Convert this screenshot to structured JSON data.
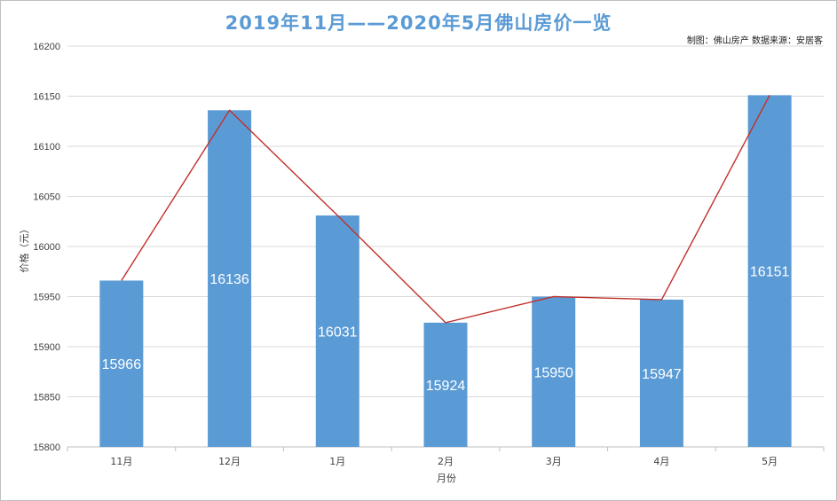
{
  "title": "2019年11月——2020年5月佛山房价一览",
  "source": "制图：佛山房产   数据来源：安居客",
  "colors": {
    "bar": "#5b9bd5",
    "line": "#c0302b",
    "title": "#5b9bd5",
    "grid": "#d9d9d9"
  },
  "chart_data": {
    "type": "bar",
    "title": "2019年11月——2020年5月佛山房价一览",
    "xlabel": "月份",
    "ylabel": "价格（元）",
    "categories": [
      "11月",
      "12月",
      "1月",
      "2月",
      "3月",
      "4月",
      "5月"
    ],
    "values": [
      15966,
      16136,
      16031,
      15924,
      15950,
      15947,
      16151
    ],
    "data_labels": [
      "15966",
      "16136",
      "16031",
      "15924",
      "15950",
      "15947",
      "16151"
    ],
    "overlay_line": true,
    "ylim": [
      15800,
      16200
    ],
    "yticks": [
      15800,
      15850,
      15900,
      15950,
      16000,
      16050,
      16100,
      16150,
      16200
    ],
    "grid": true,
    "legend": "none"
  }
}
